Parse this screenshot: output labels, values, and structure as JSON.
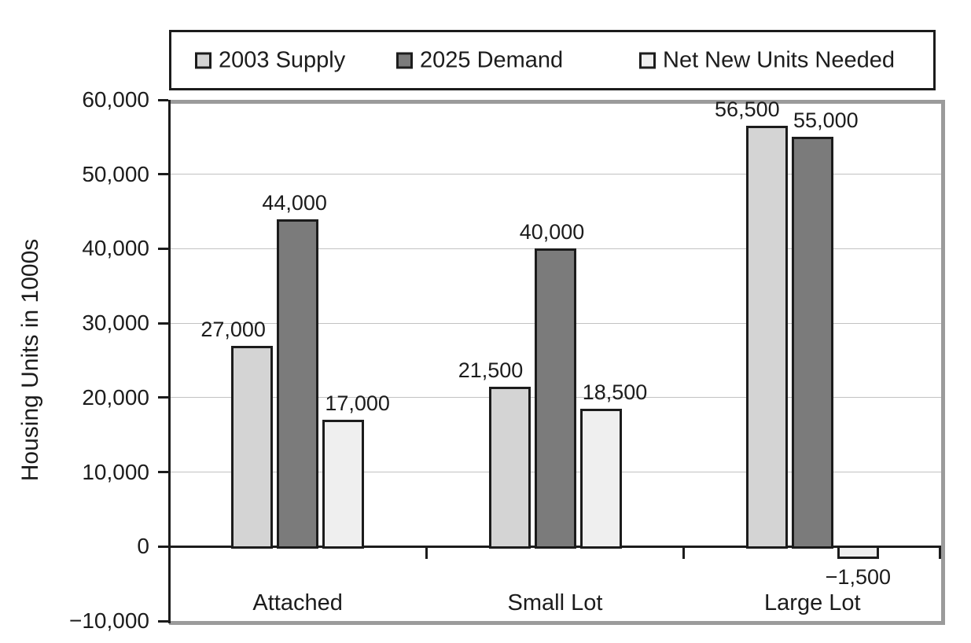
{
  "chart_data": {
    "type": "bar",
    "title": "",
    "ylabel": "Housing Units in 1000s",
    "xlabel": "",
    "categories": [
      "Attached",
      "Small Lot",
      "Large Lot"
    ],
    "series": [
      {
        "name": "2003 Supply",
        "color": "#d4d4d4",
        "values": [
          27000,
          21500,
          56500
        ],
        "value_labels": [
          "27,000",
          "21,500",
          "56,500"
        ]
      },
      {
        "name": "2025 Demand",
        "color": "#7b7b7b",
        "values": [
          44000,
          40000,
          55000
        ],
        "value_labels": [
          "44,000",
          "40,000",
          "55,000"
        ]
      },
      {
        "name": "Net New Units Needed",
        "color": "#efefef",
        "values": [
          17000,
          18500,
          -1500
        ],
        "value_labels": [
          "17,000",
          "18,500",
          "−1,500"
        ]
      }
    ],
    "ylim": [
      -10000,
      60000
    ],
    "yticks": [
      {
        "value": 60000,
        "label": "60,000"
      },
      {
        "value": 50000,
        "label": "50,000"
      },
      {
        "value": 40000,
        "label": "40,000"
      },
      {
        "value": 30000,
        "label": "30,000"
      },
      {
        "value": 20000,
        "label": "20,000"
      },
      {
        "value": 10000,
        "label": "10,000"
      },
      {
        "value": 0,
        "label": "0"
      },
      {
        "value": -10000,
        "label": "−10,000"
      }
    ],
    "grid": "horizontal",
    "legend_position": "top",
    "colors": {
      "bar_border": "#1c1c1c",
      "axis": "#1c1c1c",
      "frame": "#9b9b9b",
      "gridline": "#c2c2c2",
      "background": "#ffffff"
    }
  }
}
